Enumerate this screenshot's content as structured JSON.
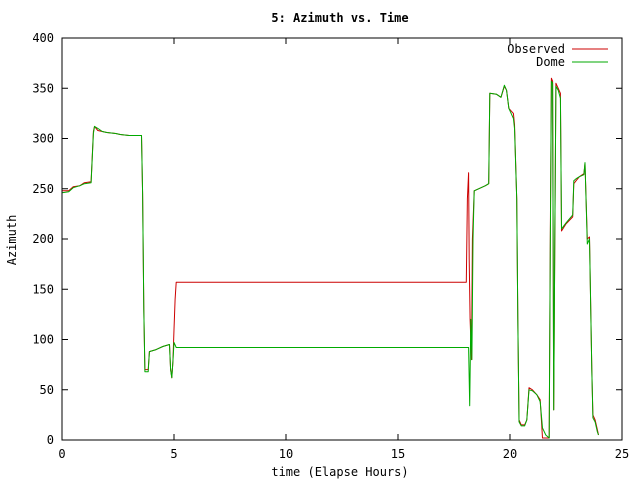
{
  "chart_data": {
    "type": "line",
    "title": "5: Azimuth vs. Time",
    "xlabel": "time (Elapse Hours)",
    "ylabel": "Azimuth",
    "xlim": [
      0,
      25
    ],
    "ylim": [
      0,
      400
    ],
    "xticks": [
      0,
      5,
      10,
      15,
      20,
      25
    ],
    "yticks": [
      0,
      50,
      100,
      150,
      200,
      250,
      300,
      350,
      400
    ],
    "grid": false,
    "legend": "top-right",
    "series": [
      {
        "name": "Observed",
        "color": "#cc0000",
        "points": [
          [
            0,
            248
          ],
          [
            0.3,
            248
          ],
          [
            0.5,
            252
          ],
          [
            0.8,
            253
          ],
          [
            1.0,
            256
          ],
          [
            1.3,
            257
          ],
          [
            1.4,
            307
          ],
          [
            1.45,
            312
          ],
          [
            1.6,
            308
          ],
          [
            1.8,
            307
          ],
          [
            2.0,
            306
          ],
          [
            2.4,
            305
          ],
          [
            2.6,
            304
          ],
          [
            3.0,
            303
          ],
          [
            3.55,
            303
          ],
          [
            3.6,
            245
          ],
          [
            3.65,
            130
          ],
          [
            3.7,
            70
          ],
          [
            3.85,
            70
          ],
          [
            3.9,
            88
          ],
          [
            4.2,
            90
          ],
          [
            4.5,
            93
          ],
          [
            4.8,
            95
          ],
          [
            4.85,
            70
          ],
          [
            4.9,
            62
          ],
          [
            4.95,
            78
          ],
          [
            5.0,
            110
          ],
          [
            5.05,
            140
          ],
          [
            5.1,
            157
          ],
          [
            18.05,
            157
          ],
          [
            18.1,
            240
          ],
          [
            18.15,
            266
          ],
          [
            18.18,
            180
          ],
          [
            18.22,
            120
          ],
          [
            18.28,
            80
          ],
          [
            18.32,
            200
          ],
          [
            18.4,
            248
          ],
          [
            18.6,
            250
          ],
          [
            18.9,
            253
          ],
          [
            19.05,
            255
          ],
          [
            19.1,
            345
          ],
          [
            19.4,
            344
          ],
          [
            19.6,
            341
          ],
          [
            19.75,
            352
          ],
          [
            19.85,
            348
          ],
          [
            19.95,
            330
          ],
          [
            20.15,
            325
          ],
          [
            20.2,
            314
          ],
          [
            20.3,
            240
          ],
          [
            20.35,
            120
          ],
          [
            20.4,
            20
          ],
          [
            20.5,
            15
          ],
          [
            20.65,
            15
          ],
          [
            20.75,
            20
          ],
          [
            20.85,
            52
          ],
          [
            21.0,
            50
          ],
          [
            21.2,
            45
          ],
          [
            21.35,
            40
          ],
          [
            21.45,
            2
          ],
          [
            21.75,
            2
          ],
          [
            21.8,
            200
          ],
          [
            21.85,
            360
          ],
          [
            21.9,
            357
          ],
          [
            21.95,
            30
          ],
          [
            22.0,
            200
          ],
          [
            22.05,
            355
          ],
          [
            22.15,
            350
          ],
          [
            22.25,
            345
          ],
          [
            22.3,
            208
          ],
          [
            22.5,
            215
          ],
          [
            22.8,
            222
          ],
          [
            22.85,
            255
          ],
          [
            22.95,
            258
          ],
          [
            23.1,
            262
          ],
          [
            23.3,
            265
          ],
          [
            23.35,
            275
          ],
          [
            23.45,
            200
          ],
          [
            23.55,
            202
          ],
          [
            23.65,
            70
          ],
          [
            23.7,
            25
          ],
          [
            23.8,
            20
          ],
          [
            23.9,
            10
          ],
          [
            23.95,
            5
          ]
        ]
      },
      {
        "name": "Dome",
        "color": "#00aa00",
        "points": [
          [
            0,
            246
          ],
          [
            0.3,
            247
          ],
          [
            0.5,
            251
          ],
          [
            0.8,
            253
          ],
          [
            1.0,
            255
          ],
          [
            1.3,
            256
          ],
          [
            1.4,
            305
          ],
          [
            1.45,
            312
          ],
          [
            1.6,
            310
          ],
          [
            1.8,
            307
          ],
          [
            2.0,
            306
          ],
          [
            2.4,
            305
          ],
          [
            2.6,
            304
          ],
          [
            3.0,
            303
          ],
          [
            3.55,
            303
          ],
          [
            3.6,
            245
          ],
          [
            3.65,
            130
          ],
          [
            3.7,
            68
          ],
          [
            3.85,
            68
          ],
          [
            3.9,
            88
          ],
          [
            4.2,
            90
          ],
          [
            4.5,
            93
          ],
          [
            4.8,
            95
          ],
          [
            4.85,
            70
          ],
          [
            4.9,
            62
          ],
          [
            4.95,
            78
          ],
          [
            5.0,
            97
          ],
          [
            5.1,
            92
          ],
          [
            18.15,
            92
          ],
          [
            18.2,
            34
          ],
          [
            18.25,
            120
          ],
          [
            18.3,
            80
          ],
          [
            18.35,
            200
          ],
          [
            18.4,
            248
          ],
          [
            18.6,
            250
          ],
          [
            18.9,
            253
          ],
          [
            19.05,
            255
          ],
          [
            19.1,
            345
          ],
          [
            19.4,
            344
          ],
          [
            19.6,
            341
          ],
          [
            19.75,
            353
          ],
          [
            19.85,
            348
          ],
          [
            19.95,
            330
          ],
          [
            20.15,
            320
          ],
          [
            20.2,
            310
          ],
          [
            20.3,
            240
          ],
          [
            20.35,
            120
          ],
          [
            20.4,
            18
          ],
          [
            20.5,
            14
          ],
          [
            20.65,
            14
          ],
          [
            20.75,
            20
          ],
          [
            20.85,
            50
          ],
          [
            21.0,
            49
          ],
          [
            21.2,
            45
          ],
          [
            21.35,
            38
          ],
          [
            21.45,
            12
          ],
          [
            21.6,
            5
          ],
          [
            21.75,
            2
          ],
          [
            21.8,
            190
          ],
          [
            21.85,
            357
          ],
          [
            21.9,
            355
          ],
          [
            21.95,
            30
          ],
          [
            22.0,
            200
          ],
          [
            22.05,
            352
          ],
          [
            22.15,
            348
          ],
          [
            22.25,
            340
          ],
          [
            22.3,
            210
          ],
          [
            22.5,
            216
          ],
          [
            22.8,
            224
          ],
          [
            22.85,
            258
          ],
          [
            22.95,
            260
          ],
          [
            23.1,
            262
          ],
          [
            23.3,
            264
          ],
          [
            23.35,
            276
          ],
          [
            23.45,
            195
          ],
          [
            23.55,
            200
          ],
          [
            23.65,
            70
          ],
          [
            23.7,
            22
          ],
          [
            23.8,
            18
          ],
          [
            23.9,
            8
          ],
          [
            23.95,
            5
          ]
        ]
      }
    ]
  }
}
